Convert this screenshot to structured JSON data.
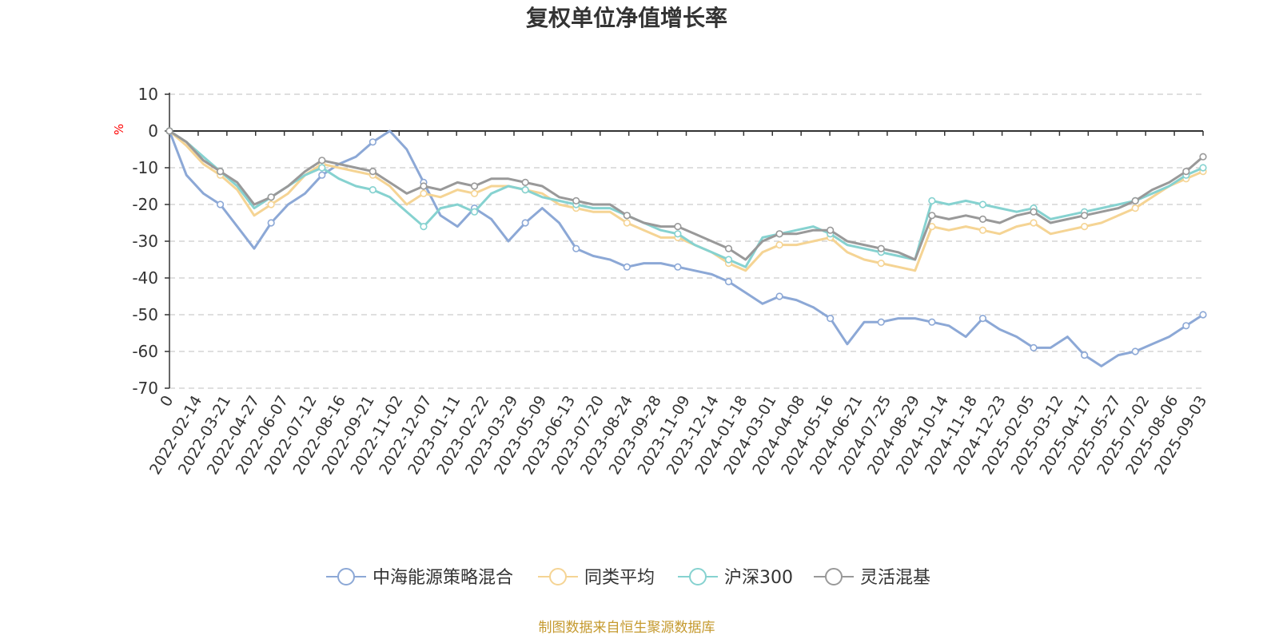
{
  "colors": {
    "axis": "#333333",
    "grid": "#cccccc",
    "unit": "#ff0000",
    "source": "#c59a2f"
  },
  "chart_data": {
    "type": "line",
    "title": "复权单位净值增长率",
    "y_unit": "%",
    "ylim": [
      -70,
      10
    ],
    "y_ticks": [
      "10",
      "0",
      "-10",
      "-20",
      "-30",
      "-40",
      "-50",
      "-60",
      "-70"
    ],
    "grid": true,
    "legend_position": "bottom",
    "source": "制图数据来自恒生聚源数据库",
    "x_labels": [
      "0",
      "2022-02-14",
      "2022-03-21",
      "2022-04-27",
      "2022-06-07",
      "2022-07-12",
      "2022-08-16",
      "2022-09-21",
      "2022-11-02",
      "2022-12-07",
      "2023-01-11",
      "2023-02-22",
      "2023-03-29",
      "2023-05-09",
      "2023-06-13",
      "2023-07-20",
      "2023-08-24",
      "2023-09-28",
      "2023-11-09",
      "2023-12-14",
      "2024-01-18",
      "2024-03-01",
      "2024-04-08",
      "2024-05-16",
      "2024-06-21",
      "2024-07-25",
      "2024-08-29",
      "2024-10-14",
      "2024-11-18",
      "2024-12-23",
      "2025-02-05",
      "2025-03-12",
      "2025-04-17",
      "2025-05-27",
      "2025-07-02",
      "2025-08-06",
      "2025-09-03"
    ],
    "series": [
      {
        "name": "中海能源策略混合",
        "color": "#8ca8d6",
        "values": [
          0,
          -12,
          -17,
          -20,
          -26,
          -32,
          -25,
          -20,
          -17,
          -12,
          -9,
          -7,
          -3,
          0,
          -5,
          -14,
          -23,
          -26,
          -21,
          -24,
          -30,
          -25,
          -21,
          -25,
          -32,
          -34,
          -35,
          -37,
          -36,
          -36,
          -37,
          -38,
          -39,
          -41,
          -44,
          -47,
          -45,
          -46,
          -48,
          -51,
          -58,
          -52,
          -52,
          -51,
          -51,
          -52,
          -53,
          -56,
          -51,
          -54,
          -56,
          -59,
          -59,
          -56,
          -61,
          -64,
          -61,
          -60,
          -58,
          -56,
          -53,
          -50
        ]
      },
      {
        "name": "同类平均",
        "color": "#f5d494",
        "values": [
          0,
          -4,
          -9,
          -12,
          -16,
          -23,
          -20,
          -17,
          -12,
          -9,
          -10,
          -11,
          -12,
          -15,
          -20,
          -17,
          -18,
          -16,
          -17,
          -15,
          -15,
          -16,
          -17,
          -20,
          -21,
          -22,
          -22,
          -25,
          -27,
          -29,
          -29,
          -31,
          -33,
          -36,
          -38,
          -33,
          -31,
          -31,
          -30,
          -29,
          -33,
          -35,
          -36,
          -37,
          -38,
          -26,
          -27,
          -26,
          -27,
          -28,
          -26,
          -25,
          -28,
          -27,
          -26,
          -25,
          -23,
          -21,
          -18,
          -15,
          -13,
          -11
        ]
      },
      {
        "name": "沪深300",
        "color": "#86d2d0",
        "values": [
          0,
          -3,
          -7,
          -11,
          -15,
          -21,
          -18,
          -15,
          -12,
          -10,
          -13,
          -15,
          -16,
          -18,
          -22,
          -26,
          -21,
          -20,
          -22,
          -17,
          -15,
          -16,
          -18,
          -19,
          -20,
          -21,
          -21,
          -23,
          -25,
          -27,
          -28,
          -31,
          -33,
          -35,
          -37,
          -29,
          -28,
          -27,
          -26,
          -28,
          -31,
          -32,
          -33,
          -34,
          -35,
          -19,
          -20,
          -19,
          -20,
          -21,
          -22,
          -21,
          -24,
          -23,
          -22,
          -21,
          -20,
          -19,
          -17,
          -15,
          -12,
          -10
        ]
      },
      {
        "name": "灵活混基",
        "color": "#999999",
        "values": [
          0,
          -3,
          -8,
          -11,
          -14,
          -20,
          -18,
          -15,
          -11,
          -8,
          -9,
          -10,
          -11,
          -14,
          -17,
          -15,
          -16,
          -14,
          -15,
          -13,
          -13,
          -14,
          -15,
          -18,
          -19,
          -20,
          -20,
          -23,
          -25,
          -26,
          -26,
          -28,
          -30,
          -32,
          -35,
          -30,
          -28,
          -28,
          -27,
          -27,
          -30,
          -31,
          -32,
          -33,
          -35,
          -23,
          -24,
          -23,
          -24,
          -25,
          -23,
          -22,
          -25,
          -24,
          -23,
          -22,
          -21,
          -19,
          -16,
          -14,
          -11,
          -7
        ]
      }
    ]
  }
}
